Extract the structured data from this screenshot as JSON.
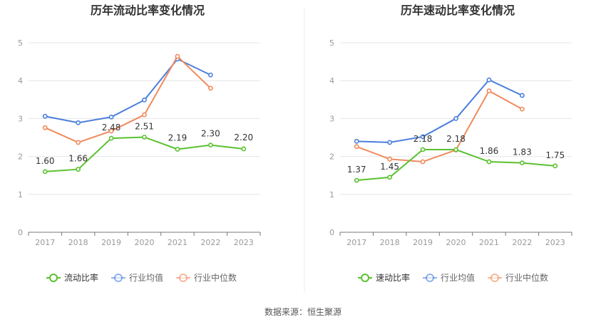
{
  "colors": {
    "company": "#5ac12f",
    "industry_avg": "#4a7fdc",
    "industry_median": "#f08a5d",
    "axis": "#999999",
    "grid": "#e6e6e6",
    "label_text": "#333333",
    "title_text": "#333333"
  },
  "source": "数据来源：恒生聚源",
  "chart_data": [
    {
      "type": "line",
      "title": "历年流动比率变化情况",
      "x": [
        "2017",
        "2018",
        "2019",
        "2020",
        "2021",
        "2022",
        "2023"
      ],
      "ylim": [
        0,
        5
      ],
      "yticks": [
        0,
        1,
        2,
        3,
        4,
        5
      ],
      "grid": true,
      "legend_position": "bottom",
      "series": [
        {
          "name": "流动比率",
          "values": [
            1.6,
            1.66,
            2.48,
            2.51,
            2.19,
            2.3,
            2.2
          ],
          "labels": [
            "1.60",
            "1.66",
            "2.48",
            "2.51",
            "2.19",
            "2.30",
            "2.20"
          ]
        },
        {
          "name": "行业均值",
          "values": [
            3.06,
            2.89,
            3.04,
            3.49,
            4.57,
            4.15,
            null
          ]
        },
        {
          "name": "行业中位数",
          "values": [
            2.76,
            2.37,
            2.67,
            3.1,
            4.64,
            3.8,
            null
          ]
        }
      ]
    },
    {
      "type": "line",
      "title": "历年速动比率变化情况",
      "x": [
        "2017",
        "2018",
        "2019",
        "2020",
        "2021",
        "2022",
        "2023"
      ],
      "ylim": [
        0,
        5
      ],
      "yticks": [
        0,
        1,
        2,
        3,
        4,
        5
      ],
      "grid": true,
      "legend_position": "bottom",
      "series": [
        {
          "name": "速动比率",
          "values": [
            1.37,
            1.45,
            2.18,
            2.18,
            1.86,
            1.83,
            1.75
          ],
          "labels": [
            "1.37",
            "1.45",
            "2.18",
            "2.18",
            "1.86",
            "1.83",
            "1.75"
          ]
        },
        {
          "name": "行业均值",
          "values": [
            2.4,
            2.37,
            2.52,
            3.0,
            4.02,
            3.61,
            null
          ]
        },
        {
          "name": "行业中位数",
          "values": [
            2.26,
            1.93,
            1.86,
            2.17,
            3.73,
            3.25,
            null
          ]
        }
      ]
    }
  ]
}
